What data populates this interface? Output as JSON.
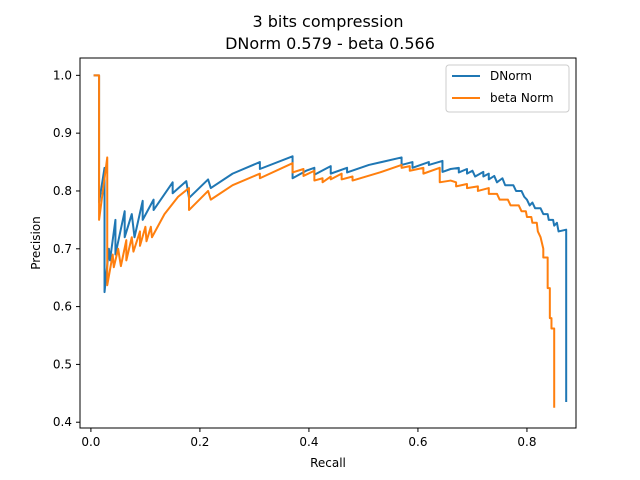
{
  "chart_data": {
    "type": "line",
    "title": "3 bits compression",
    "subtitle": "DNorm 0.579 - beta 0.566",
    "xlabel": "Recall",
    "ylabel": "Precision",
    "xlim": [
      -0.02,
      0.89
    ],
    "ylim": [
      0.39,
      1.03
    ],
    "xticks": [
      0.0,
      0.2,
      0.4,
      0.6,
      0.8
    ],
    "yticks": [
      0.4,
      0.5,
      0.6,
      0.7,
      0.8,
      0.9,
      1.0
    ],
    "xtick_labels": [
      "0.0",
      "0.2",
      "0.4",
      "0.6",
      "0.8"
    ],
    "ytick_labels": [
      "0.4",
      "0.5",
      "0.6",
      "0.7",
      "0.8",
      "0.9",
      "1.0"
    ],
    "legend_position": "top-right",
    "series": [
      {
        "name": "DNorm",
        "color": "#1f77b4",
        "points": [
          [
            0.005,
            1.0
          ],
          [
            0.015,
            1.0
          ],
          [
            0.015,
            0.78
          ],
          [
            0.025,
            0.84
          ],
          [
            0.025,
            0.625
          ],
          [
            0.033,
            0.7
          ],
          [
            0.035,
            0.68
          ],
          [
            0.045,
            0.75
          ],
          [
            0.045,
            0.69
          ],
          [
            0.062,
            0.765
          ],
          [
            0.062,
            0.72
          ],
          [
            0.075,
            0.76
          ],
          [
            0.08,
            0.72
          ],
          [
            0.095,
            0.783
          ],
          [
            0.095,
            0.75
          ],
          [
            0.115,
            0.785
          ],
          [
            0.115,
            0.767
          ],
          [
            0.15,
            0.815
          ],
          [
            0.15,
            0.796
          ],
          [
            0.175,
            0.817
          ],
          [
            0.18,
            0.788
          ],
          [
            0.215,
            0.82
          ],
          [
            0.22,
            0.805
          ],
          [
            0.26,
            0.83
          ],
          [
            0.31,
            0.85
          ],
          [
            0.31,
            0.838
          ],
          [
            0.37,
            0.86
          ],
          [
            0.37,
            0.822
          ],
          [
            0.395,
            0.835
          ],
          [
            0.41,
            0.84
          ],
          [
            0.41,
            0.828
          ],
          [
            0.44,
            0.843
          ],
          [
            0.44,
            0.83
          ],
          [
            0.47,
            0.84
          ],
          [
            0.47,
            0.832
          ],
          [
            0.51,
            0.845
          ],
          [
            0.57,
            0.858
          ],
          [
            0.57,
            0.845
          ],
          [
            0.59,
            0.85
          ],
          [
            0.59,
            0.84
          ],
          [
            0.62,
            0.85
          ],
          [
            0.62,
            0.845
          ],
          [
            0.645,
            0.852
          ],
          [
            0.645,
            0.833
          ],
          [
            0.66,
            0.838
          ],
          [
            0.675,
            0.84
          ],
          [
            0.675,
            0.832
          ],
          [
            0.69,
            0.838
          ],
          [
            0.69,
            0.83
          ],
          [
            0.7,
            0.835
          ],
          [
            0.705,
            0.825
          ],
          [
            0.72,
            0.833
          ],
          [
            0.72,
            0.825
          ],
          [
            0.73,
            0.83
          ],
          [
            0.73,
            0.82
          ],
          [
            0.74,
            0.826
          ],
          [
            0.745,
            0.815
          ],
          [
            0.755,
            0.822
          ],
          [
            0.76,
            0.81
          ],
          [
            0.775,
            0.81
          ],
          [
            0.78,
            0.8
          ],
          [
            0.79,
            0.8
          ],
          [
            0.795,
            0.79
          ],
          [
            0.8,
            0.785
          ],
          [
            0.805,
            0.775
          ],
          [
            0.81,
            0.78
          ],
          [
            0.815,
            0.77
          ],
          [
            0.825,
            0.77
          ],
          [
            0.83,
            0.76
          ],
          [
            0.838,
            0.76
          ],
          [
            0.84,
            0.75
          ],
          [
            0.848,
            0.75
          ],
          [
            0.85,
            0.74
          ],
          [
            0.855,
            0.745
          ],
          [
            0.858,
            0.73
          ],
          [
            0.872,
            0.733
          ],
          [
            0.872,
            0.435
          ]
        ]
      },
      {
        "name": "beta Norm",
        "color": "#ff7f0e",
        "points": [
          [
            0.005,
            1.0
          ],
          [
            0.015,
            1.0
          ],
          [
            0.015,
            0.75
          ],
          [
            0.03,
            0.858
          ],
          [
            0.03,
            0.637
          ],
          [
            0.04,
            0.69
          ],
          [
            0.042,
            0.668
          ],
          [
            0.05,
            0.7
          ],
          [
            0.055,
            0.67
          ],
          [
            0.065,
            0.715
          ],
          [
            0.065,
            0.68
          ],
          [
            0.075,
            0.72
          ],
          [
            0.078,
            0.695
          ],
          [
            0.09,
            0.73
          ],
          [
            0.09,
            0.705
          ],
          [
            0.1,
            0.738
          ],
          [
            0.102,
            0.713
          ],
          [
            0.11,
            0.738
          ],
          [
            0.112,
            0.72
          ],
          [
            0.135,
            0.76
          ],
          [
            0.16,
            0.79
          ],
          [
            0.18,
            0.805
          ],
          [
            0.18,
            0.767
          ],
          [
            0.215,
            0.8
          ],
          [
            0.22,
            0.785
          ],
          [
            0.26,
            0.81
          ],
          [
            0.31,
            0.83
          ],
          [
            0.31,
            0.822
          ],
          [
            0.37,
            0.848
          ],
          [
            0.37,
            0.832
          ],
          [
            0.39,
            0.838
          ],
          [
            0.39,
            0.826
          ],
          [
            0.41,
            0.835
          ],
          [
            0.41,
            0.818
          ],
          [
            0.425,
            0.822
          ],
          [
            0.425,
            0.815
          ],
          [
            0.44,
            0.825
          ],
          [
            0.44,
            0.82
          ],
          [
            0.46,
            0.83
          ],
          [
            0.46,
            0.82
          ],
          [
            0.48,
            0.825
          ],
          [
            0.48,
            0.818
          ],
          [
            0.53,
            0.832
          ],
          [
            0.57,
            0.845
          ],
          [
            0.57,
            0.84
          ],
          [
            0.585,
            0.843
          ],
          [
            0.585,
            0.835
          ],
          [
            0.61,
            0.84
          ],
          [
            0.61,
            0.83
          ],
          [
            0.64,
            0.84
          ],
          [
            0.64,
            0.815
          ],
          [
            0.66,
            0.818
          ],
          [
            0.67,
            0.815
          ],
          [
            0.67,
            0.808
          ],
          [
            0.69,
            0.812
          ],
          [
            0.69,
            0.805
          ],
          [
            0.71,
            0.808
          ],
          [
            0.71,
            0.8
          ],
          [
            0.73,
            0.805
          ],
          [
            0.73,
            0.795
          ],
          [
            0.745,
            0.795
          ],
          [
            0.75,
            0.785
          ],
          [
            0.765,
            0.785
          ],
          [
            0.77,
            0.775
          ],
          [
            0.785,
            0.775
          ],
          [
            0.79,
            0.765
          ],
          [
            0.798,
            0.765
          ],
          [
            0.8,
            0.755
          ],
          [
            0.808,
            0.755
          ],
          [
            0.81,
            0.745
          ],
          [
            0.818,
            0.745
          ],
          [
            0.82,
            0.73
          ],
          [
            0.825,
            0.72
          ],
          [
            0.83,
            0.7
          ],
          [
            0.83,
            0.685
          ],
          [
            0.838,
            0.685
          ],
          [
            0.838,
            0.632
          ],
          [
            0.842,
            0.632
          ],
          [
            0.842,
            0.58
          ],
          [
            0.845,
            0.58
          ],
          [
            0.845,
            0.562
          ],
          [
            0.85,
            0.562
          ],
          [
            0.85,
            0.425
          ]
        ]
      }
    ]
  }
}
